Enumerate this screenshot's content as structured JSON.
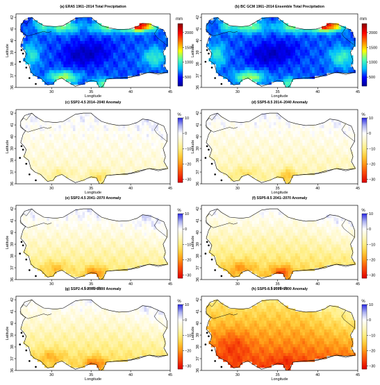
{
  "chart_data": [
    {
      "type": "heatmap",
      "title": "(a) ERA5 1961–2014 Total Precipitation",
      "xlabel": "Longitude",
      "ylabel": "Latitude",
      "xticks": [
        "30",
        "35",
        "40",
        "45"
      ],
      "yticks": [
        "36",
        "37",
        "38",
        "39",
        "40",
        "41",
        "42"
      ],
      "xlim": [
        25.5,
        45
      ],
      "ylim": [
        36,
        42.3
      ],
      "colorbar": {
        "unit": "mm",
        "ticks": [
          "500",
          "1000",
          "1500",
          "2000"
        ],
        "range": [
          200,
          2300
        ],
        "colors": [
          "#00008f",
          "#0000ff",
          "#00bfff",
          "#4fffaf",
          "#ffff00",
          "#ff7f00",
          "#ff0000",
          "#8f0000"
        ]
      },
      "field": {
        "kind": "precip",
        "base": 620,
        "hotspots": [
          {
            "lon": 41.0,
            "lat": 41.3,
            "amp": 1500,
            "rx": 1.9,
            "ry": 0.45
          },
          {
            "lon": 37.0,
            "lat": 41.2,
            "amp": 500,
            "rx": 2.0,
            "ry": 0.5
          },
          {
            "lon": 31.5,
            "lat": 41.2,
            "amp": 550,
            "rx": 1.8,
            "ry": 0.5
          },
          {
            "lon": 28.8,
            "lat": 41.3,
            "amp": 350,
            "rx": 1.0,
            "ry": 0.5
          },
          {
            "lon": 31.5,
            "lat": 36.9,
            "amp": 650,
            "rx": 1.8,
            "ry": 0.5
          },
          {
            "lon": 36.5,
            "lat": 36.3,
            "amp": 500,
            "rx": 1.2,
            "ry": 0.5
          },
          {
            "lon": 27.5,
            "lat": 38.8,
            "amp": 350,
            "rx": 1.0,
            "ry": 1.0
          },
          {
            "lon": 43.0,
            "lat": 38.6,
            "amp": 400,
            "rx": 1.4,
            "ry": 0.8
          },
          {
            "lon": 33.5,
            "lat": 38.8,
            "amp": -250,
            "rx": 2.2,
            "ry": 1.0
          },
          {
            "lon": 36.0,
            "lat": 39.2,
            "amp": -150,
            "rx": 2.0,
            "ry": 1.0
          }
        ]
      }
    },
    {
      "type": "heatmap",
      "title": "(b) BC GCM 1961–2014 Ensemble Total Precipitation",
      "xlabel": "Longitude",
      "ylabel": "Latitude",
      "xticks": [
        "30",
        "35",
        "40",
        "45"
      ],
      "yticks": [
        "36",
        "37",
        "38",
        "39",
        "40",
        "41",
        "42"
      ],
      "xlim": [
        25.5,
        45
      ],
      "ylim": [
        36,
        42.3
      ],
      "colorbar": {
        "unit": "mm",
        "ticks": [
          "500",
          "1000",
          "1500",
          "2000"
        ],
        "range": [
          200,
          2300
        ],
        "colors": [
          "#00008f",
          "#0000ff",
          "#00bfff",
          "#4fffaf",
          "#ffff00",
          "#ff7f00",
          "#ff0000",
          "#8f0000"
        ]
      },
      "field": {
        "kind": "precip",
        "base": 630,
        "hotspots": [
          {
            "lon": 41.0,
            "lat": 41.3,
            "amp": 1450,
            "rx": 1.9,
            "ry": 0.45
          },
          {
            "lon": 37.0,
            "lat": 41.2,
            "amp": 520,
            "rx": 2.0,
            "ry": 0.5
          },
          {
            "lon": 31.5,
            "lat": 41.2,
            "amp": 540,
            "rx": 1.8,
            "ry": 0.5
          },
          {
            "lon": 28.8,
            "lat": 41.3,
            "amp": 350,
            "rx": 1.0,
            "ry": 0.5
          },
          {
            "lon": 31.5,
            "lat": 36.9,
            "amp": 640,
            "rx": 1.8,
            "ry": 0.5
          },
          {
            "lon": 36.5,
            "lat": 36.3,
            "amp": 480,
            "rx": 1.2,
            "ry": 0.5
          },
          {
            "lon": 27.5,
            "lat": 38.8,
            "amp": 350,
            "rx": 1.0,
            "ry": 1.0
          },
          {
            "lon": 43.0,
            "lat": 38.6,
            "amp": 420,
            "rx": 1.4,
            "ry": 0.8
          },
          {
            "lon": 33.5,
            "lat": 38.8,
            "amp": -240,
            "rx": 2.2,
            "ry": 1.0
          },
          {
            "lon": 36.0,
            "lat": 39.2,
            "amp": -150,
            "rx": 2.0,
            "ry": 1.0
          }
        ]
      }
    },
    {
      "type": "heatmap",
      "title": "(c) SSP2-4.5 2014–2040 Anomaly",
      "xlabel": "Longitude",
      "ylabel": "Latitude",
      "xticks": [
        "30",
        "35",
        "40",
        "45"
      ],
      "yticks": [
        "36",
        "37",
        "38",
        "39",
        "40",
        "41",
        "42"
      ],
      "xlim": [
        25.5,
        45
      ],
      "ylim": [
        36,
        42.3
      ],
      "colorbar": {
        "unit": "%",
        "ticks": [
          "10",
          "0",
          "−10",
          "−20",
          "−30"
        ],
        "range": [
          -32,
          10
        ]
      },
      "field": {
        "kind": "anomaly",
        "south_value": -6,
        "north_value": 1,
        "east_boost": 2,
        "hotspots": [
          {
            "lon": 36.0,
            "lat": 36.6,
            "amp": -7,
            "rx": 1.2,
            "ry": 0.6
          },
          {
            "lon": 31.0,
            "lat": 36.9,
            "amp": -4,
            "rx": 1.5,
            "ry": 0.5
          }
        ]
      }
    },
    {
      "type": "heatmap",
      "title": "(d) SSP5-8.5 2014–2040 Anomaly",
      "xlabel": "Longitude",
      "ylabel": "Latitude",
      "xticks": [
        "30",
        "35",
        "40",
        "45"
      ],
      "yticks": [
        "36",
        "37",
        "38",
        "39",
        "40",
        "41",
        "42"
      ],
      "xlim": [
        25.5,
        45
      ],
      "ylim": [
        36,
        42.3
      ],
      "colorbar": {
        "unit": "%",
        "ticks": [
          "10",
          "0",
          "−10",
          "−20",
          "−30"
        ],
        "range": [
          -32,
          10
        ]
      },
      "field": {
        "kind": "anomaly",
        "south_value": -8,
        "north_value": 1,
        "east_boost": 2,
        "hotspots": [
          {
            "lon": 36.3,
            "lat": 36.7,
            "amp": -10,
            "rx": 1.0,
            "ry": 0.6
          },
          {
            "lon": 31.0,
            "lat": 36.9,
            "amp": -5,
            "rx": 1.5,
            "ry": 0.5
          }
        ]
      }
    },
    {
      "type": "heatmap",
      "title": "(e) SSP2-4.5 2041–2070 Anomaly",
      "xlabel": "Longitude",
      "ylabel": "Latitude",
      "xticks": [
        "30",
        "35",
        "40",
        "45"
      ],
      "yticks": [
        "36",
        "37",
        "38",
        "39",
        "40",
        "41",
        "42"
      ],
      "xlim": [
        25.5,
        45
      ],
      "ylim": [
        36,
        42.3
      ],
      "colorbar": {
        "unit": "%",
        "ticks": [
          "10",
          "0",
          "−10",
          "−20",
          "−30"
        ],
        "range": [
          -32,
          10
        ]
      },
      "field": {
        "kind": "anomaly",
        "south_value": -12,
        "north_value": 2,
        "east_boost": 4,
        "hotspots": [
          {
            "lon": 35.5,
            "lat": 36.6,
            "amp": -10,
            "rx": 1.3,
            "ry": 0.6
          },
          {
            "lon": 30.5,
            "lat": 37.0,
            "amp": -6,
            "rx": 1.6,
            "ry": 0.6
          }
        ]
      }
    },
    {
      "type": "heatmap",
      "title": "(f) SSP5-8.5 2041–2070 Anomaly",
      "xlabel": "Longitude",
      "ylabel": "Latitude",
      "xticks": [
        "30",
        "35",
        "40",
        "45"
      ],
      "yticks": [
        "36",
        "37",
        "38",
        "39",
        "40",
        "41",
        "42"
      ],
      "xlim": [
        25.5,
        45
      ],
      "ylim": [
        36,
        42.3
      ],
      "colorbar": {
        "unit": "%",
        "ticks": [
          "10",
          "0",
          "−10",
          "−20",
          "−30"
        ],
        "range": [
          -32,
          10
        ]
      },
      "field": {
        "kind": "anomaly",
        "south_value": -15,
        "north_value": 1,
        "east_boost": 5,
        "hotspots": [
          {
            "lon": 35.5,
            "lat": 36.6,
            "amp": -12,
            "rx": 1.3,
            "ry": 0.6
          },
          {
            "lon": 30.5,
            "lat": 37.0,
            "amp": -7,
            "rx": 1.6,
            "ry": 0.6
          }
        ]
      }
    },
    {
      "type": "heatmap",
      "title": "(g) SSP2-4.5 2071–2100 Anomaly",
      "xlabel": "Longitude",
      "ylabel": "Latitude",
      "xticks": [
        "30",
        "35",
        "40",
        "45"
      ],
      "yticks": [
        "36",
        "37",
        "38",
        "39",
        "40",
        "41",
        "42"
      ],
      "xlim": [
        25.5,
        45
      ],
      "ylim": [
        36,
        42.3
      ],
      "colorbar": {
        "unit": "%",
        "ticks": [
          "10",
          "0",
          "−10",
          "−20",
          "−30"
        ],
        "range": [
          -32,
          10
        ]
      },
      "field": {
        "kind": "anomaly",
        "south_value": -14,
        "north_value": 1,
        "east_boost": 5,
        "hotspots": [
          {
            "lon": 35.5,
            "lat": 36.6,
            "amp": -10,
            "rx": 1.3,
            "ry": 0.6
          },
          {
            "lon": 30.0,
            "lat": 37.2,
            "amp": -6,
            "rx": 1.6,
            "ry": 0.6
          }
        ]
      }
    },
    {
      "type": "heatmap",
      "title": "(h) SSP5-8.5 2071–2100 Anomaly",
      "xlabel": "Longitude",
      "ylabel": "Latitude",
      "xticks": [
        "30",
        "35",
        "40",
        "45"
      ],
      "yticks": [
        "36",
        "37",
        "38",
        "39",
        "40",
        "41",
        "42"
      ],
      "xlim": [
        25.5,
        45
      ],
      "ylim": [
        36,
        42.3
      ],
      "colorbar": {
        "unit": "%",
        "ticks": [
          "10",
          "0",
          "−10",
          "−20",
          "−30"
        ],
        "range": [
          -32,
          10
        ]
      },
      "field": {
        "kind": "anomaly",
        "south_value": -27,
        "north_value": -10,
        "east_boost": 9,
        "hotspots": [
          {
            "lon": 29.5,
            "lat": 38.2,
            "amp": -5,
            "rx": 2.0,
            "ry": 1.2
          },
          {
            "lon": 36.0,
            "lat": 36.7,
            "amp": -3,
            "rx": 1.5,
            "ry": 0.6
          }
        ]
      }
    }
  ]
}
